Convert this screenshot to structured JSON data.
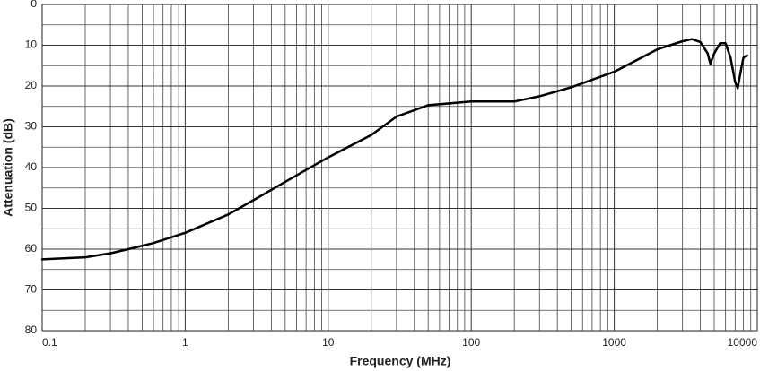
{
  "chart_data": {
    "type": "line",
    "x_label": "Frequency (MHz)",
    "y_label": "Attenuation (dB)",
    "x_log": true,
    "y_inverted": true,
    "grid": true,
    "x_minor_grid": true,
    "xlim": [
      0.1,
      10000
    ],
    "xticks": [
      0.1,
      1,
      10,
      100,
      1000,
      10000
    ],
    "ylim": [
      0,
      80
    ],
    "yticks": [
      0,
      10,
      20,
      30,
      40,
      50,
      60,
      70,
      80
    ],
    "y_minor_ticks": [
      5,
      15,
      25,
      35,
      45,
      55,
      65,
      75
    ],
    "x": [
      0.1,
      0.2,
      0.3,
      0.4,
      0.6,
      1,
      2,
      3,
      5,
      10,
      20,
      30,
      50,
      100,
      200,
      300,
      500,
      1000,
      2000,
      3000,
      3500,
      4000,
      4500,
      4700,
      5000,
      5500,
      6000,
      6500,
      7000,
      7300,
      7700,
      8000,
      8500
    ],
    "series": [
      {
        "color": "#000000",
        "values": [
          62.5,
          62,
          61,
          60,
          58.5,
          56,
          51.5,
          48,
          43.5,
          37.5,
          32,
          27.5,
          24.7,
          23.8,
          23.8,
          22.5,
          20.3,
          16.5,
          11,
          9,
          8.5,
          9.2,
          12,
          14.5,
          12,
          9.5,
          9.5,
          13,
          19,
          20.5,
          16,
          13,
          12.5
        ]
      }
    ]
  }
}
